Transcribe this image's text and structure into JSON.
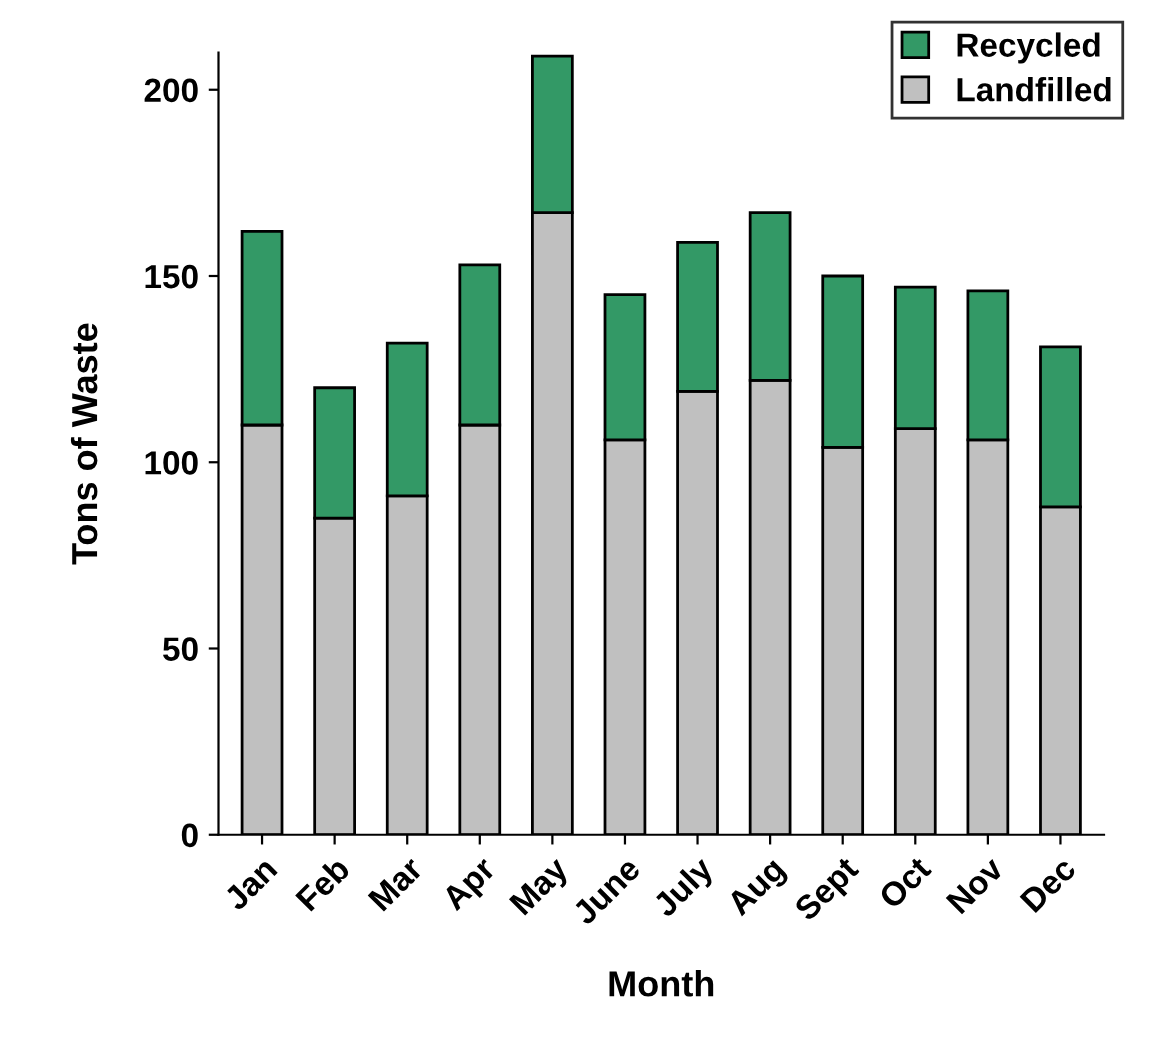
{
  "chart_data": {
    "type": "bar",
    "xlabel": "Month",
    "ylabel": "Tons of Waste",
    "categories": [
      "Jan",
      "Feb",
      "Mar",
      "Apr",
      "May",
      "June",
      "July",
      "Aug",
      "Sept",
      "Oct",
      "Nov",
      "Dec"
    ],
    "stacked": true,
    "series": [
      {
        "name": "Landfilled",
        "color": "#c0c0c0",
        "values": [
          110,
          85,
          91,
          110,
          167,
          106,
          119,
          122,
          104,
          109,
          106,
          88
        ]
      },
      {
        "name": "Recycled",
        "color": "#339966",
        "values": [
          52,
          35,
          41,
          43,
          42,
          39,
          40,
          45,
          46,
          38,
          40,
          43
        ]
      }
    ],
    "ylim": [
      0,
      210
    ],
    "yticks": [
      0,
      50,
      100,
      150,
      200
    ],
    "grid": false,
    "legend": "top right"
  }
}
